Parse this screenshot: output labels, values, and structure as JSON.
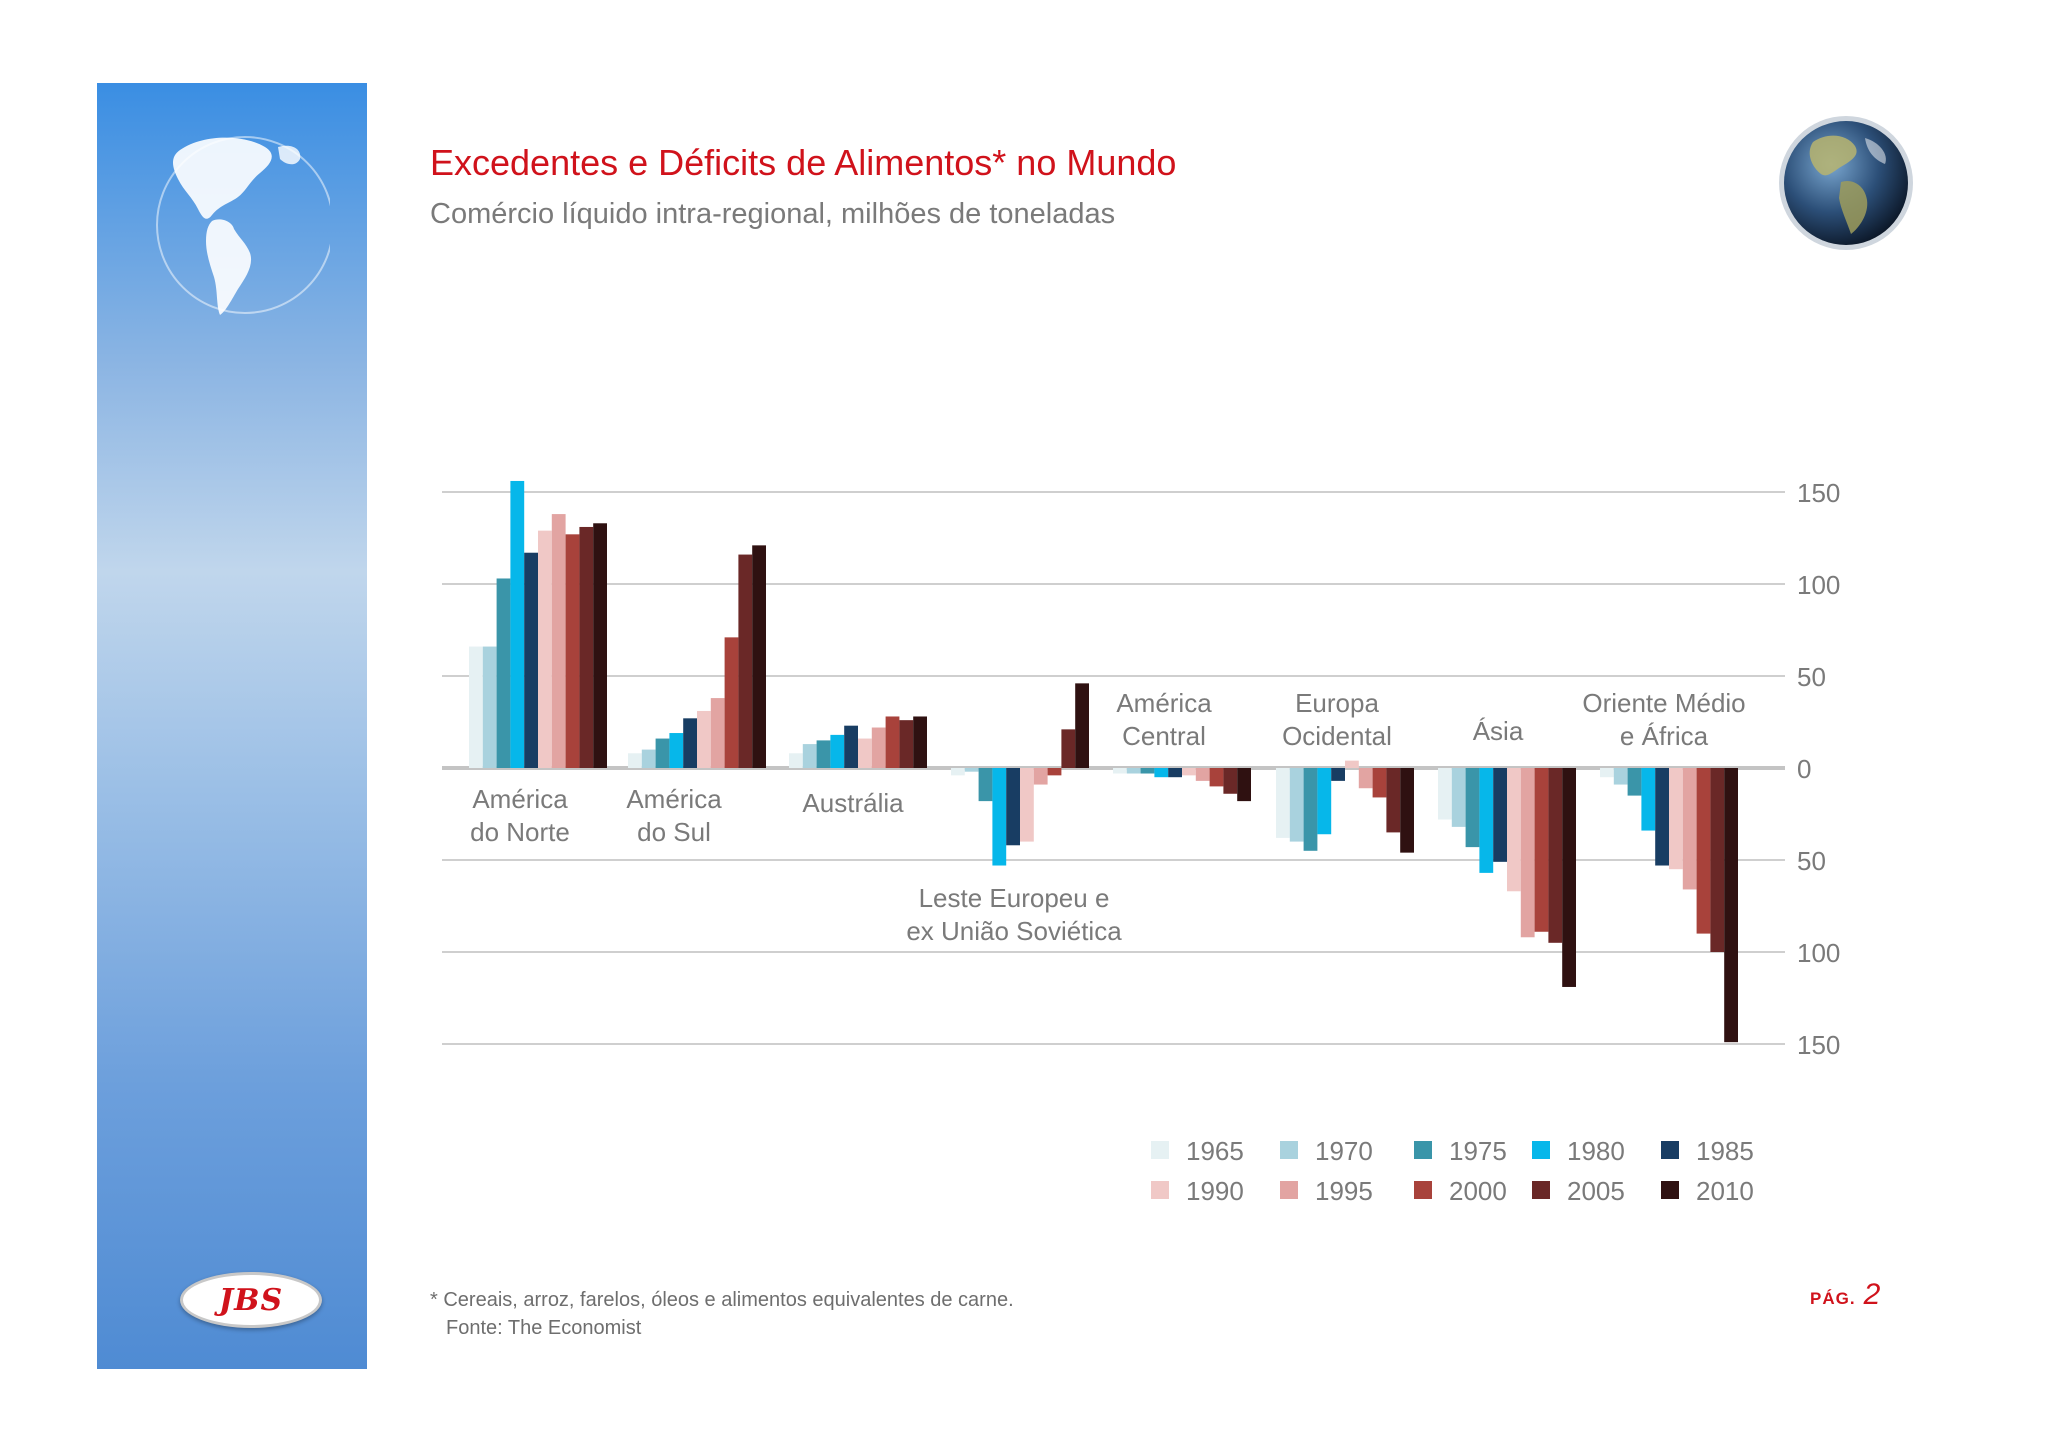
{
  "title": "Excedentes e Déficits de Alimentos* no Mundo",
  "subtitle": "Comércio líquido intra-regional, milhões de toneladas",
  "footnote": "* Cereais, arroz, farelos, óleos e alimentos equivalentes de carne.",
  "source": "Fonte: The Economist",
  "page_label": "PÁG.",
  "page_number": "2",
  "logo_text": "JBS",
  "colors": {
    "title": "#d0121b",
    "1965": "#e6f1f3",
    "1970": "#a9d2de",
    "1975": "#3a95a9",
    "1980": "#06b7ea",
    "1985": "#183d63",
    "1990": "#f0c8c6",
    "1995": "#e2a4a2",
    "2000": "#a8423b",
    "2005": "#6a2827",
    "2010": "#2f1111"
  },
  "chart_data": {
    "type": "bar",
    "title": "Excedentes e Déficits de Alimentos* no Mundo",
    "ylabel": "Comércio líquido intra-regional, milhões de toneladas",
    "ylim": [
      -150,
      150
    ],
    "yticks": [
      {
        "value": 150,
        "label": "150"
      },
      {
        "value": 100,
        "label": "100"
      },
      {
        "value": 50,
        "label": "50"
      },
      {
        "value": 0,
        "label": "0"
      },
      {
        "value": -50,
        "label": "50"
      },
      {
        "value": -100,
        "label": "100"
      },
      {
        "value": -150,
        "label": "150"
      }
    ],
    "grid": true,
    "legend_position": "bottom-right",
    "series_names": [
      "1965",
      "1970",
      "1975",
      "1980",
      "1985",
      "1990",
      "1995",
      "2000",
      "2005",
      "2010"
    ],
    "categories": [
      {
        "label": [
          "América",
          "do Norte"
        ],
        "values": [
          66,
          66,
          103,
          156,
          117,
          129,
          138,
          127,
          131,
          133
        ]
      },
      {
        "label": [
          "América",
          "do Sul"
        ],
        "values": [
          8,
          10,
          16,
          19,
          27,
          31,
          38,
          71,
          116,
          121
        ]
      },
      {
        "label": [
          "Austrália"
        ],
        "values": [
          8,
          13,
          15,
          18,
          23,
          16,
          22,
          28,
          26,
          28
        ]
      },
      {
        "label": [
          "Leste Europeu e",
          "ex União Soviética"
        ],
        "values": [
          -4,
          -2,
          -18,
          -53,
          -42,
          -40,
          -9,
          -4,
          21,
          46
        ]
      },
      {
        "label": [
          "América",
          "Central"
        ],
        "values": [
          -3,
          -3,
          -3,
          -5,
          -5,
          -4,
          -7,
          -10,
          -14,
          -18
        ]
      },
      {
        "label": [
          "Europa",
          "Ocidental"
        ],
        "values": [
          -38,
          -40,
          -45,
          -36,
          -7,
          4,
          -11,
          -16,
          -35,
          -46
        ]
      },
      {
        "label": [
          "Ásia"
        ],
        "values": [
          -28,
          -32,
          -43,
          -57,
          -51,
          -67,
          -92,
          -89,
          -95,
          -119
        ]
      },
      {
        "label": [
          "Oriente Médio",
          "e África"
        ],
        "values": [
          -5,
          -9,
          -15,
          -34,
          -53,
          -55,
          -66,
          -90,
          -100,
          -149
        ]
      }
    ]
  }
}
